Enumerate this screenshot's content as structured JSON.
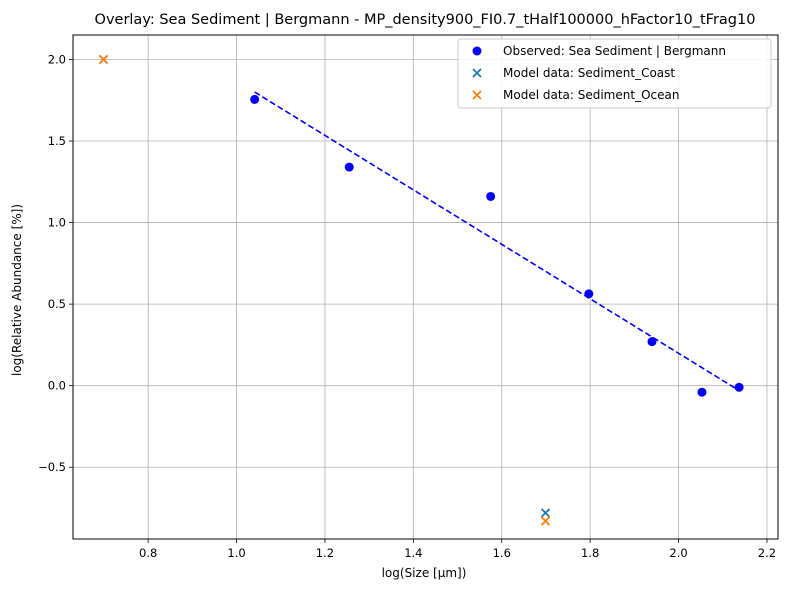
{
  "chart_data": {
    "type": "scatter",
    "title": "Overlay: Sea Sediment | Bergmann - MP_density900_FI0.7_tHalf100000_hFactor10_tFrag10",
    "xlabel": "log(Size [μm])",
    "ylabel": "log(Relative Abundance [%])",
    "xlim": [
      0.63,
      2.225
    ],
    "ylim": [
      -0.94,
      2.15
    ],
    "xticks": [
      0.8,
      1.0,
      1.2,
      1.4,
      1.6,
      1.8,
      2.0,
      2.2
    ],
    "xtick_labels": [
      "0.8",
      "1.0",
      "1.2",
      "1.4",
      "1.6",
      "1.8",
      "2.0",
      "2.2"
    ],
    "yticks": [
      -0.5,
      0.0,
      0.5,
      1.0,
      1.5,
      2.0
    ],
    "ytick_labels": [
      "−0.5",
      "0.0",
      "0.5",
      "1.0",
      "1.5",
      "2.0"
    ],
    "grid": true,
    "legend_position": "top-right",
    "series": [
      {
        "name": "Observed: Sea Sediment | Bergmann",
        "marker": "circle",
        "color": "#0000ff",
        "points": [
          {
            "x": 1.041,
            "y": 1.755
          },
          {
            "x": 1.255,
            "y": 1.34
          },
          {
            "x": 1.575,
            "y": 1.16
          },
          {
            "x": 1.797,
            "y": 0.563
          },
          {
            "x": 1.94,
            "y": 0.27
          },
          {
            "x": 2.053,
            "y": -0.04
          },
          {
            "x": 2.137,
            "y": -0.01
          }
        ]
      },
      {
        "name": "Model data: Sediment_Coast",
        "marker": "x",
        "color": "#1f77b4",
        "points": [
          {
            "x": 0.699,
            "y": 2.0
          },
          {
            "x": 1.699,
            "y": -0.78
          }
        ]
      },
      {
        "name": "Model data: Sediment_Ocean",
        "marker": "x",
        "color": "#ff7f0e",
        "points": [
          {
            "x": 0.699,
            "y": 2.0
          },
          {
            "x": 1.699,
            "y": -0.83
          }
        ]
      }
    ],
    "fit_line": {
      "style": "dashed",
      "color": "#0000ff",
      "x": [
        1.041,
        2.137
      ],
      "y": [
        1.8,
        -0.03
      ]
    }
  }
}
